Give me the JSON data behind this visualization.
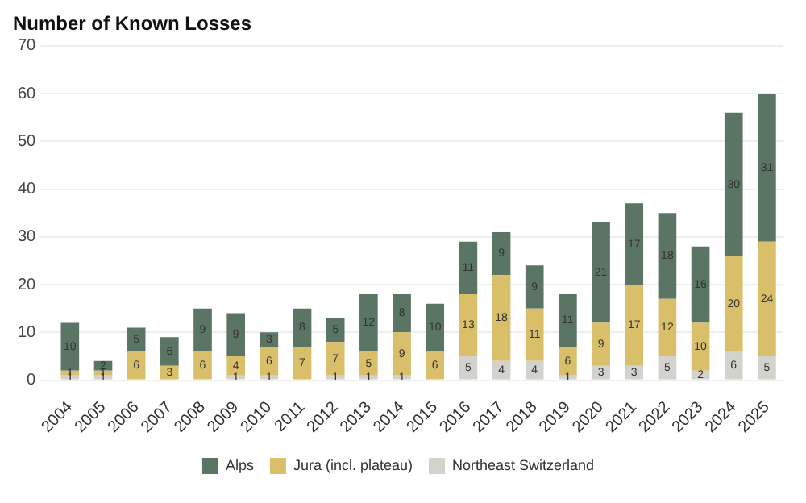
{
  "chart_data": {
    "type": "bar",
    "title": "Number of Known Losses",
    "stacked": true,
    "categories": [
      "2004",
      "2005",
      "2006",
      "2007",
      "2008",
      "2009",
      "2010",
      "2011",
      "2012",
      "2013",
      "2014",
      "2015",
      "2016",
      "2017",
      "2018",
      "2019",
      "2020",
      "2021",
      "2022",
      "2023",
      "2024",
      "2025"
    ],
    "series": [
      {
        "name": "Northeast Switzerland",
        "color": "#d4d2cc",
        "values": [
          1,
          1,
          null,
          null,
          null,
          1,
          1,
          null,
          1,
          1,
          1,
          null,
          5,
          4,
          4,
          1,
          3,
          3,
          5,
          2,
          6,
          5
        ]
      },
      {
        "name": "Jura (incl. plateau)",
        "color": "#d9bf6a",
        "values": [
          1,
          1,
          6,
          3,
          6,
          4,
          6,
          7,
          7,
          5,
          9,
          6,
          13,
          18,
          11,
          6,
          9,
          17,
          12,
          10,
          20,
          24
        ]
      },
      {
        "name": "Alps",
        "color": "#5b7565",
        "values": [
          10,
          2,
          5,
          6,
          9,
          9,
          3,
          8,
          5,
          12,
          8,
          10,
          11,
          9,
          9,
          11,
          21,
          17,
          18,
          16,
          30,
          31
        ]
      }
    ],
    "ylim": [
      0,
      70
    ],
    "yticks": [
      0,
      10,
      20,
      30,
      40,
      50,
      60,
      70
    ],
    "grid": "y",
    "legend": "bottom",
    "data_labels": true
  }
}
